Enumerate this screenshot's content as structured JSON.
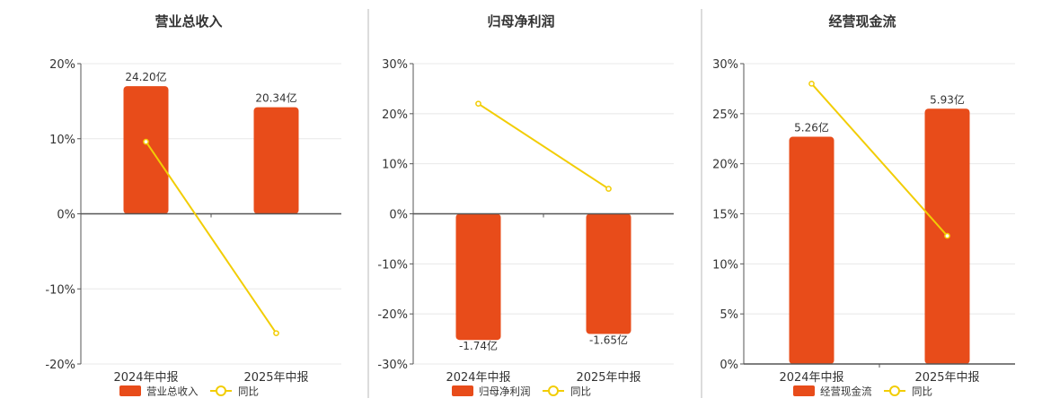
{
  "colors": {
    "bar": "#e84c1a",
    "line": "#f2cd05",
    "grid": "#e8e8e8",
    "axis": "#555555",
    "divider": "#b8b8b8",
    "text": "#333333"
  },
  "chart_data": [
    {
      "type": "bar",
      "title": "营业总收入",
      "categories": [
        "2024年中报",
        "2025年中报"
      ],
      "ylim": [
        -20,
        20
      ],
      "yticks": [
        20,
        10,
        0,
        -10,
        -20
      ],
      "ytick_labels": [
        "20%",
        "10%",
        "0%",
        "-10%",
        "-20%"
      ],
      "grid": true,
      "legend_position": "bottom",
      "series": [
        {
          "name": "营业总收入",
          "kind": "bar",
          "values": [
            17,
            14.2
          ],
          "labels": [
            "24.20亿",
            "20.34亿"
          ]
        },
        {
          "name": "同比",
          "kind": "line",
          "values": [
            9.6,
            -15.9
          ]
        }
      ]
    },
    {
      "type": "bar",
      "title": "归母净利润",
      "categories": [
        "2024年中报",
        "2025年中报"
      ],
      "ylim": [
        -30,
        30
      ],
      "yticks": [
        30,
        20,
        10,
        0,
        -10,
        -20,
        -30
      ],
      "ytick_labels": [
        "30%",
        "20%",
        "10%",
        "0%",
        "-10%",
        "-20%",
        "-30%"
      ],
      "grid": true,
      "legend_position": "bottom",
      "series": [
        {
          "name": "归母净利润",
          "kind": "bar",
          "values": [
            -25.2,
            -24.0
          ],
          "labels": [
            "-1.74亿",
            "-1.65亿"
          ]
        },
        {
          "name": "同比",
          "kind": "line",
          "values": [
            22.0,
            5.0
          ]
        }
      ]
    },
    {
      "type": "bar",
      "title": "经营现金流",
      "categories": [
        "2024年中报",
        "2025年中报"
      ],
      "ylim": [
        0,
        30
      ],
      "yticks": [
        30,
        25,
        20,
        15,
        10,
        5,
        0
      ],
      "ytick_labels": [
        "30%",
        "25%",
        "20%",
        "15%",
        "10%",
        "5%",
        "0%"
      ],
      "grid": true,
      "legend_position": "bottom",
      "series": [
        {
          "name": "经营现金流",
          "kind": "bar",
          "values": [
            22.7,
            25.5
          ],
          "labels": [
            "5.26亿",
            "5.93亿"
          ]
        },
        {
          "name": "同比",
          "kind": "line",
          "values": [
            28.0,
            12.8
          ]
        }
      ]
    }
  ]
}
